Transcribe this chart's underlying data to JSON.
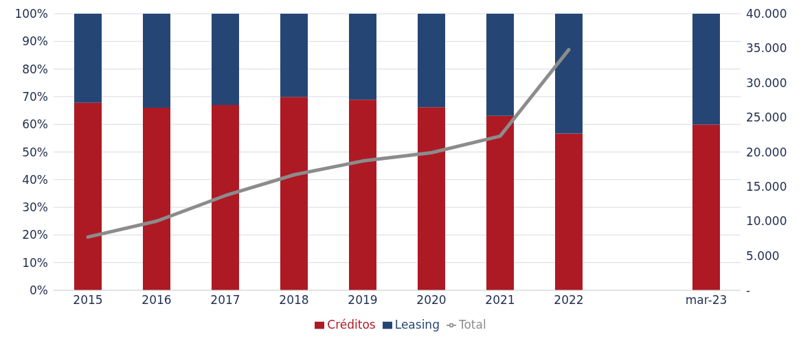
{
  "chart_data": {
    "type": "bar",
    "stacked": true,
    "categories": [
      "2015",
      "2016",
      "2017",
      "2018",
      "2019",
      "2020",
      "2021",
      "2022",
      null,
      "mar-23"
    ],
    "series": [
      {
        "name": "Créditos",
        "color": "#ad1a24",
        "values": [
          67.8,
          66.0,
          67.0,
          69.9,
          68.9,
          66.2,
          63.1,
          56.7,
          null,
          59.9
        ]
      },
      {
        "name": "Leasing",
        "color": "#254675",
        "values": [
          32.2,
          34.0,
          33.0,
          30.1,
          31.1,
          33.8,
          36.9,
          43.3,
          null,
          40.1
        ]
      },
      {
        "name": "Total",
        "type": "line",
        "axis": "y2",
        "color": "#8c8c8c",
        "marker": "none",
        "line_style": "solid",
        "values": [
          7700,
          10000,
          13700,
          16700,
          18700,
          19900,
          22300,
          34800,
          null,
          null
        ]
      }
    ],
    "ylim": [
      0,
      100
    ],
    "yticks": [
      {
        "value": 0,
        "label": "0%"
      },
      {
        "value": 10,
        "label": "10%"
      },
      {
        "value": 20,
        "label": "20%"
      },
      {
        "value": 30,
        "label": "30%"
      },
      {
        "value": 40,
        "label": "40%"
      },
      {
        "value": 50,
        "label": "50%"
      },
      {
        "value": 60,
        "label": "60%"
      },
      {
        "value": 70,
        "label": "70%"
      },
      {
        "value": 80,
        "label": "80%"
      },
      {
        "value": 90,
        "label": "90%"
      },
      {
        "value": 100,
        "label": "100%"
      }
    ],
    "y2lim": [
      0,
      40000
    ],
    "y2ticks": [
      {
        "value": 0,
        "label": "-"
      },
      {
        "value": 5000,
        "label": "5.000"
      },
      {
        "value": 10000,
        "label": "10.000"
      },
      {
        "value": 15000,
        "label": "15.000"
      },
      {
        "value": 20000,
        "label": "20.000"
      },
      {
        "value": 25000,
        "label": "25.000"
      },
      {
        "value": 30000,
        "label": "30.000"
      },
      {
        "value": 35000,
        "label": "35.000"
      },
      {
        "value": 40000,
        "label": "40.000"
      }
    ],
    "grid": "y",
    "legend": "bottom"
  }
}
